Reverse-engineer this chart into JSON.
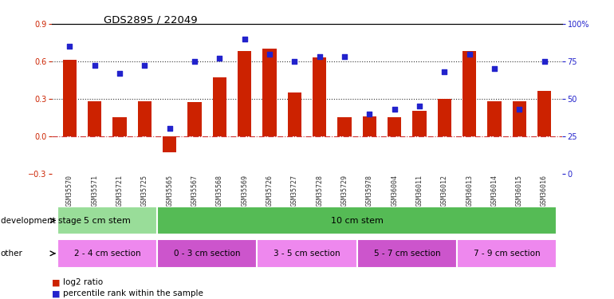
{
  "title": "GDS2895 / 22049",
  "categories": [
    "GSM35570",
    "GSM35571",
    "GSM35721",
    "GSM35725",
    "GSM35565",
    "GSM35567",
    "GSM35568",
    "GSM35569",
    "GSM35726",
    "GSM35727",
    "GSM35728",
    "GSM35729",
    "GSM35978",
    "GSM36004",
    "GSM36011",
    "GSM36012",
    "GSM36013",
    "GSM36014",
    "GSM36015",
    "GSM36016"
  ],
  "log2_ratio": [
    0.61,
    0.28,
    0.15,
    0.28,
    -0.13,
    0.27,
    0.47,
    0.68,
    0.7,
    0.35,
    0.63,
    0.15,
    0.16,
    0.15,
    0.2,
    0.3,
    0.68,
    0.28,
    0.28,
    0.36
  ],
  "percentile": [
    85,
    72,
    67,
    72,
    30,
    75,
    77,
    90,
    80,
    75,
    78,
    78,
    40,
    43,
    45,
    68,
    80,
    70,
    43,
    75
  ],
  "bar_color": "#cc2200",
  "dot_color": "#2222cc",
  "ylim_left": [
    -0.3,
    0.9
  ],
  "ylim_right": [
    0,
    100
  ],
  "yticks_left": [
    -0.3,
    0.0,
    0.3,
    0.6,
    0.9
  ],
  "yticks_right": [
    0,
    25,
    50,
    75,
    100
  ],
  "ytick_labels_right": [
    "0",
    "25",
    "50",
    "75",
    "100%"
  ],
  "hline_0_style": "dashdot",
  "hline_0_color": "#cc3333",
  "hline_dotted_color": "#333333",
  "dev_stage_groups": [
    {
      "label": "5 cm stem",
      "start": 0,
      "end": 3,
      "color": "#99dd99"
    },
    {
      "label": "10 cm stem",
      "start": 4,
      "end": 19,
      "color": "#55bb55"
    }
  ],
  "other_groups": [
    {
      "label": "2 - 4 cm section",
      "start": 0,
      "end": 3,
      "color": "#ee88ee"
    },
    {
      "label": "0 - 3 cm section",
      "start": 4,
      "end": 7,
      "color": "#cc55cc"
    },
    {
      "label": "3 - 5 cm section",
      "start": 8,
      "end": 11,
      "color": "#ee88ee"
    },
    {
      "label": "5 - 7 cm section",
      "start": 12,
      "end": 15,
      "color": "#cc55cc"
    },
    {
      "label": "7 - 9 cm section",
      "start": 16,
      "end": 19,
      "color": "#ee88ee"
    }
  ],
  "dev_stage_label": "development stage",
  "other_label": "other",
  "legend_bar_label": "log2 ratio",
  "legend_dot_label": "percentile rank within the sample"
}
